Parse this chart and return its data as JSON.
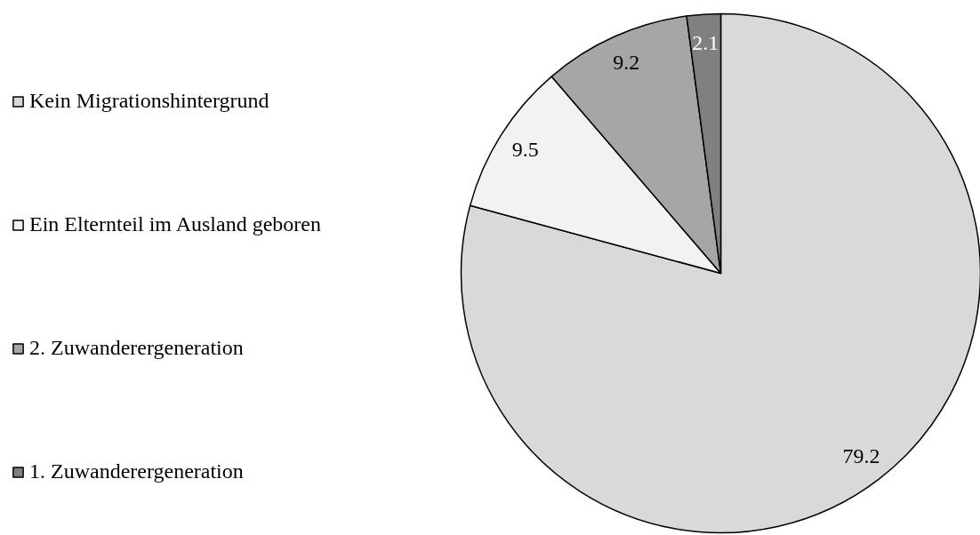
{
  "chart_data": {
    "type": "pie",
    "categories": [
      "Kein Migrationshintergrund",
      "Ein Elternteil im Ausland geboren",
      "2. Zuwanderergeneration",
      "1. Zuwanderergeneration"
    ],
    "values": [
      79.2,
      9.5,
      9.2,
      2.1
    ],
    "colors": [
      "#d9d9d9",
      "#f2f2f2",
      "#a6a6a6",
      "#808080"
    ],
    "data_labels": true,
    "legend": "left"
  }
}
